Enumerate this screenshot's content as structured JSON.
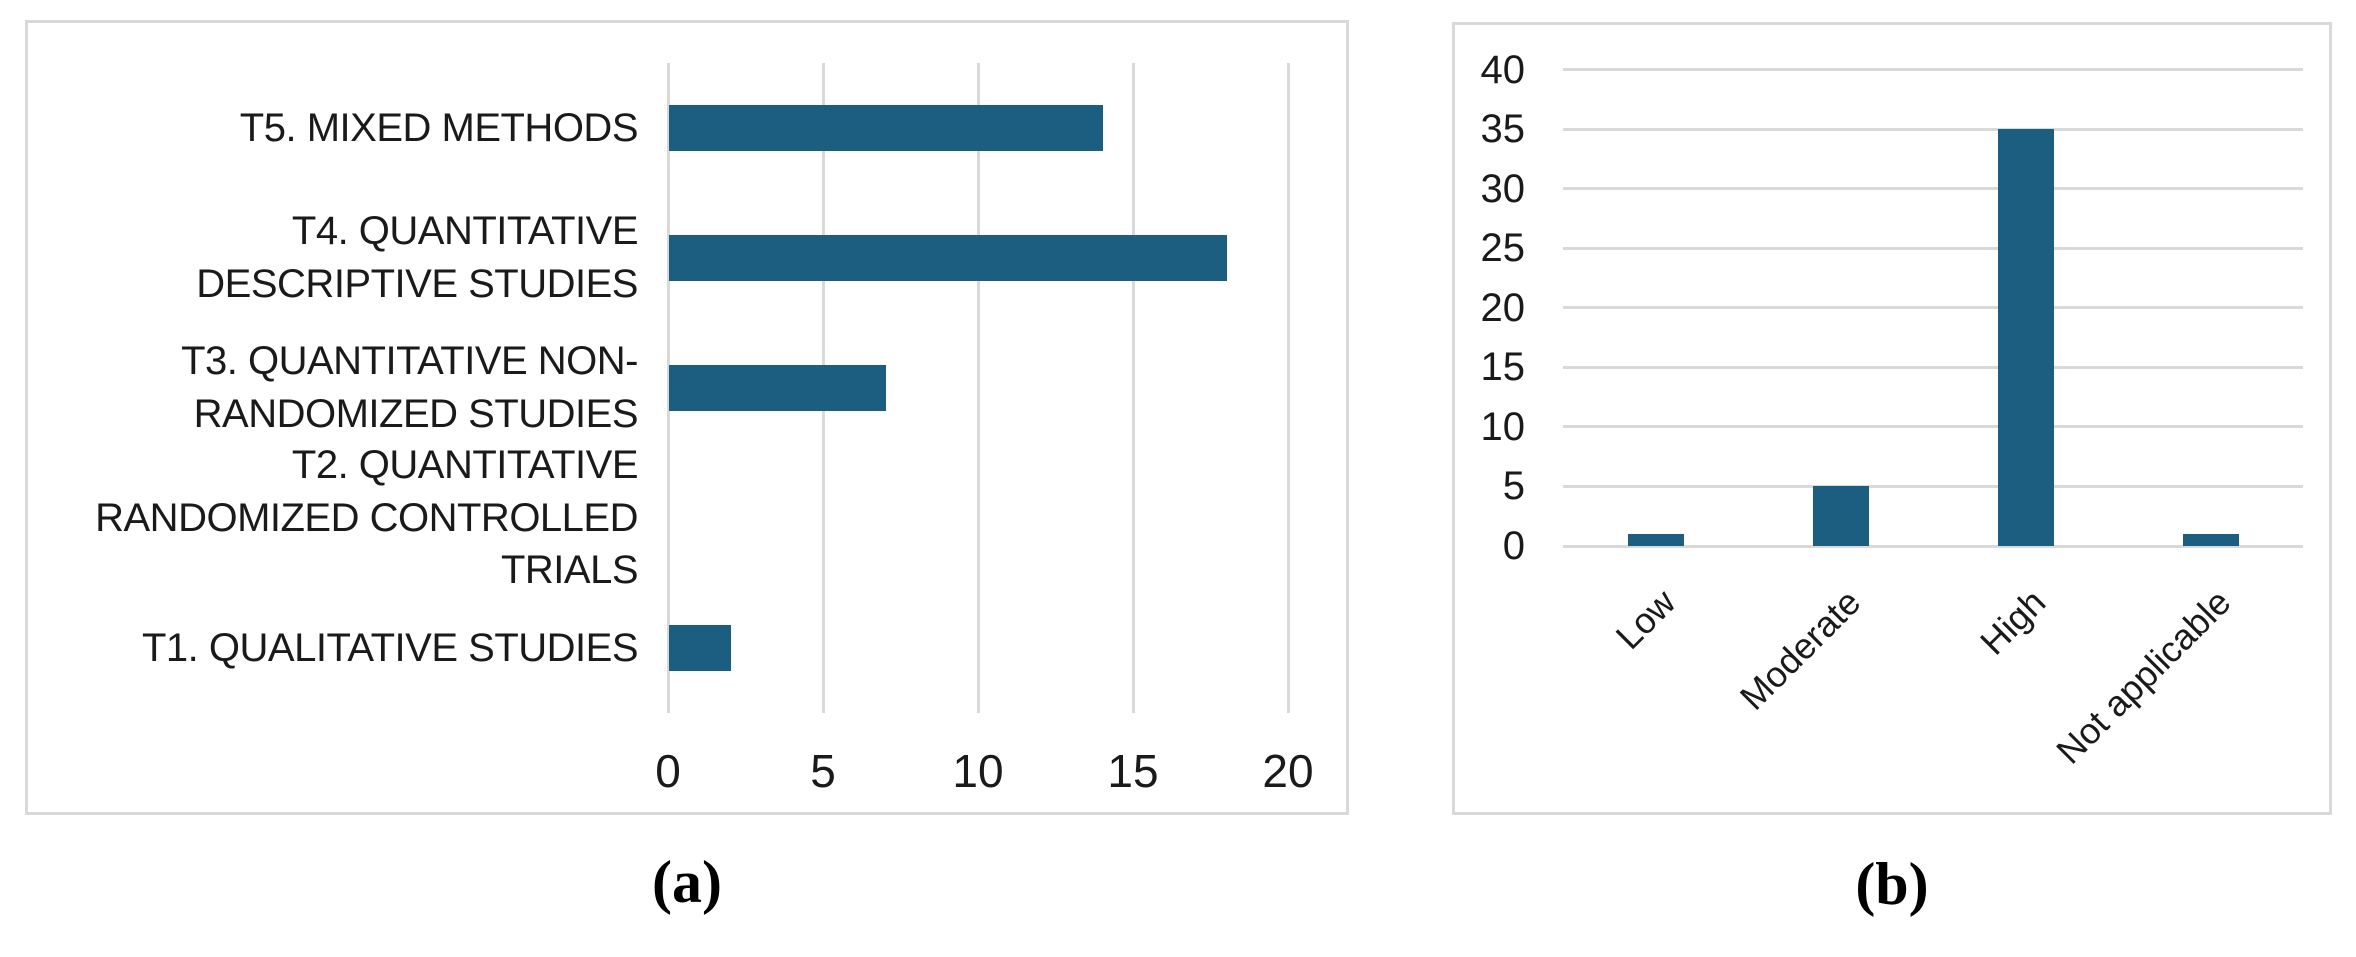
{
  "figure": {
    "caption_a": "(a)",
    "caption_b": "(b)"
  },
  "colors": {
    "bar": "#1b5e80",
    "grid": "#d9d9d9",
    "panel_border": "#d9d9d9",
    "text": "#1a1a1a"
  },
  "chart_data": [
    {
      "id": "a",
      "type": "bar",
      "orientation": "horizontal",
      "title": "",
      "xlabel": "",
      "ylabel": "",
      "categories": [
        "T5. MIXED METHODS",
        "T4. QUANTITATIVE DESCRIPTIVE STUDIES",
        "T3. QUANTITATIVE NON-RANDOMIZED STUDIES",
        "T2. QUANTITATIVE RANDOMIZED CONTROLLED TRIALS",
        "T1. QUALITATIVE STUDIES"
      ],
      "values": [
        14,
        18,
        7,
        0,
        2
      ],
      "x_ticks": [
        0,
        5,
        10,
        15,
        20
      ],
      "xlim": [
        0,
        22
      ],
      "grid": "vertical",
      "legend": "none"
    },
    {
      "id": "b",
      "type": "bar",
      "orientation": "vertical",
      "title": "",
      "xlabel": "",
      "ylabel": "",
      "categories": [
        "Low",
        "Moderate",
        "High",
        "Not applicable"
      ],
      "values": [
        1,
        5,
        35,
        1
      ],
      "y_ticks": [
        0,
        5,
        10,
        15,
        20,
        25,
        30,
        35,
        40
      ],
      "ylim": [
        0,
        41
      ],
      "grid": "horizontal",
      "legend": "none"
    }
  ]
}
